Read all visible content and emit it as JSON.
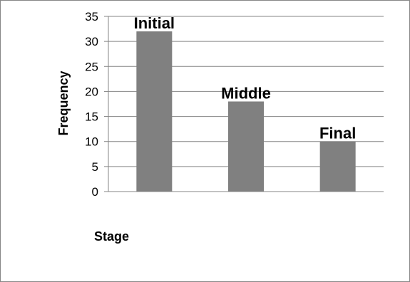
{
  "chart_data": {
    "type": "bar",
    "categories": [
      "Initial",
      "Middle",
      "Final"
    ],
    "values": [
      32,
      18,
      10
    ],
    "title": "",
    "xlabel": "Stage",
    "ylabel": "Frequency",
    "ylim": [
      0,
      35
    ],
    "yticks": [
      0,
      5,
      10,
      15,
      20,
      25,
      30,
      35
    ],
    "grid": true,
    "legend": "none",
    "bar_color": "#808080",
    "grid_color": "#868686"
  }
}
